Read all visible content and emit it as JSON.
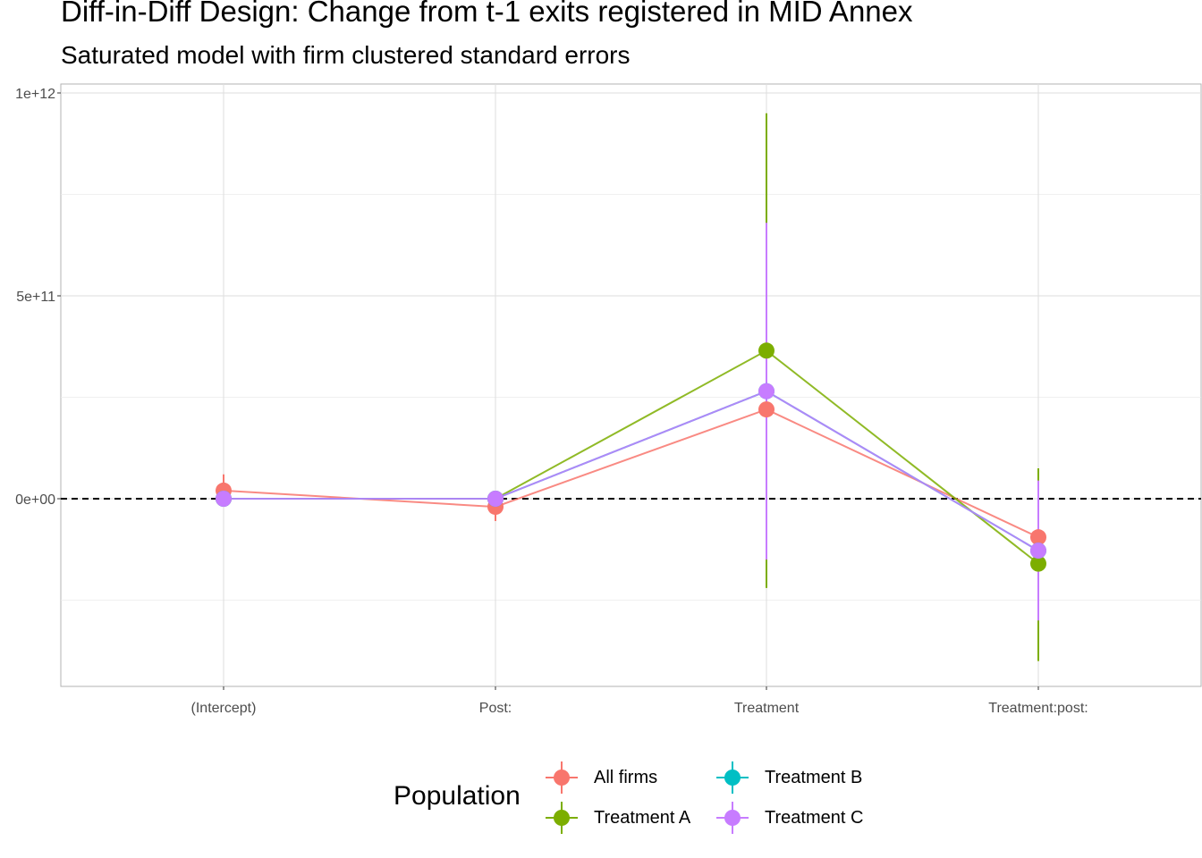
{
  "chart_data": {
    "type": "scatter",
    "title": "Diff-in-Diff Design: Change from t-1 exits registered in MID Annex",
    "subtitle": "Saturated model with firm clustered standard errors",
    "xlabel": "",
    "ylabel": "",
    "categories": [
      "(Intercept)",
      "Post:",
      "Treatment",
      "Treatment:post:"
    ],
    "ylim": [
      -460000000000,
      1020000000000
    ],
    "y_ticks": [
      0,
      500000000000,
      1000000000000
    ],
    "y_tick_labels": [
      "0e+00",
      "5e+11",
      "1e+12"
    ],
    "reference_line": {
      "y": 0,
      "style": "dashed"
    },
    "grid": true,
    "legend": {
      "title": "Population",
      "position": "bottom"
    },
    "series": [
      {
        "name": "All firms",
        "color": "#F8766D",
        "values": [
          20000000000,
          -20000000000,
          220000000000,
          -95000000000
        ],
        "lower": [
          -20000000000,
          -55000000000,
          160000000000,
          -120000000000
        ],
        "upper": [
          60000000000,
          15000000000,
          280000000000,
          -70000000000
        ]
      },
      {
        "name": "Treatment A",
        "color": "#7CAE00",
        "values": [
          0,
          0,
          365000000000,
          -160000000000
        ],
        "lower": [
          0,
          0,
          -220000000000,
          -400000000000
        ],
        "upper": [
          0,
          0,
          950000000000,
          75000000000
        ]
      },
      {
        "name": "Treatment B",
        "color": "#00BFC4",
        "values": [
          0,
          0,
          265000000000,
          -128000000000
        ],
        "lower": [
          0,
          0,
          265000000000,
          -128000000000
        ],
        "upper": [
          0,
          0,
          265000000000,
          -128000000000
        ]
      },
      {
        "name": "Treatment C",
        "color": "#C77CFF",
        "values": [
          0,
          0,
          265000000000,
          -128000000000
        ],
        "lower": [
          0,
          0,
          -150000000000,
          -300000000000
        ],
        "upper": [
          0,
          0,
          680000000000,
          45000000000
        ]
      }
    ]
  }
}
